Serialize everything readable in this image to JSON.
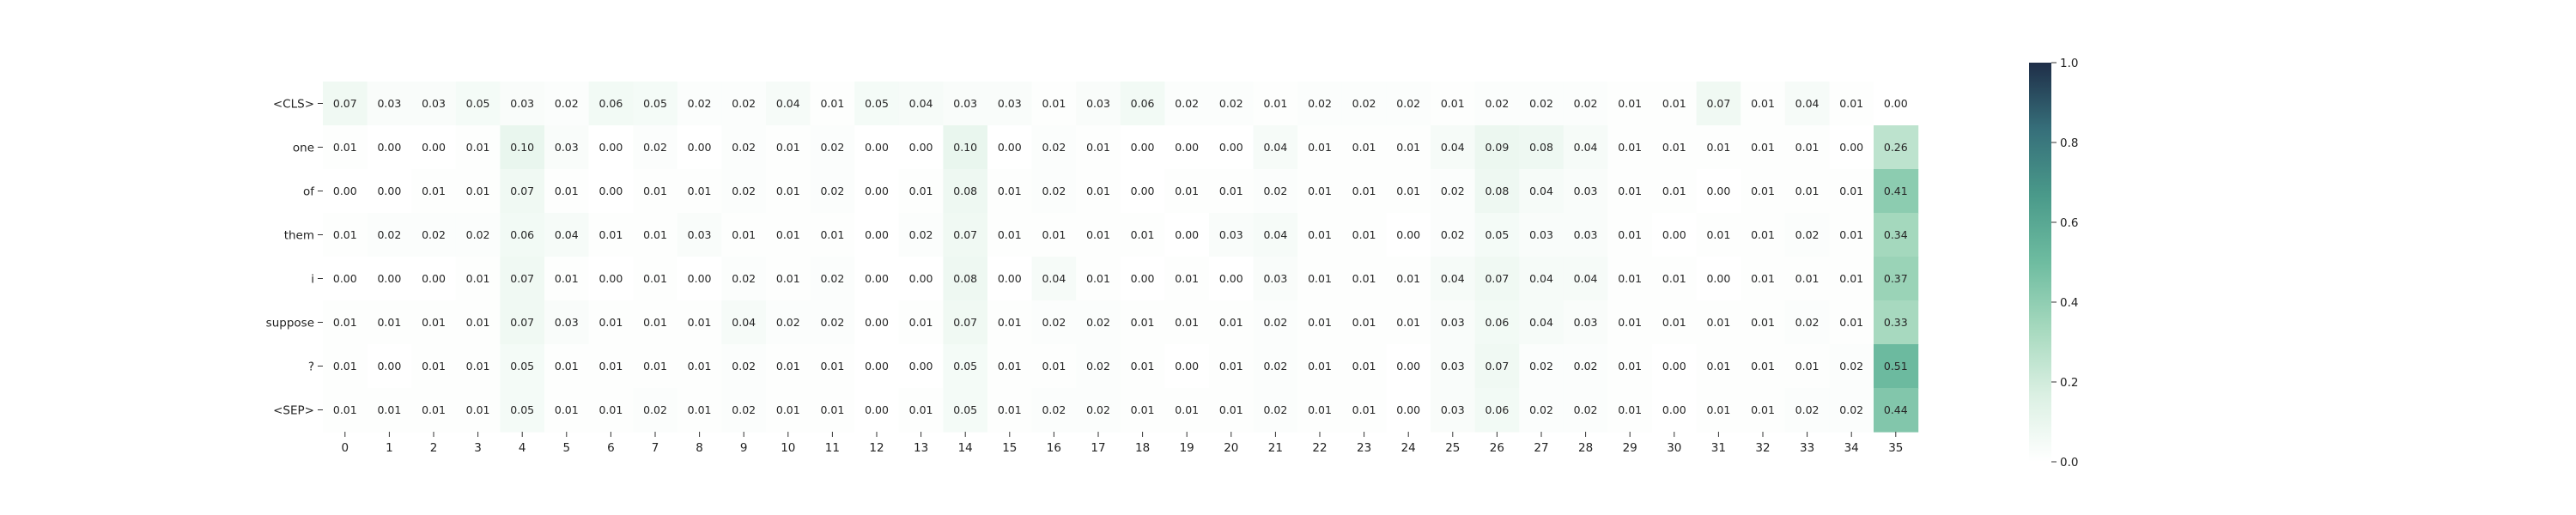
{
  "chart_data": {
    "type": "heatmap",
    "title": "",
    "xlabel": "",
    "ylabel": "",
    "x_categories": [
      "0",
      "1",
      "2",
      "3",
      "4",
      "5",
      "6",
      "7",
      "8",
      "9",
      "10",
      "11",
      "12",
      "13",
      "14",
      "15",
      "16",
      "17",
      "18",
      "19",
      "20",
      "21",
      "22",
      "23",
      "24",
      "25",
      "26",
      "27",
      "28",
      "29",
      "30",
      "31",
      "32",
      "33",
      "34",
      "35"
    ],
    "y_categories": [
      "<CLS>",
      "one",
      "of",
      "them",
      "i",
      "suppose",
      "?",
      "<SEP>"
    ],
    "values": [
      [
        0.07,
        0.03,
        0.03,
        0.05,
        0.03,
        0.02,
        0.06,
        0.05,
        0.02,
        0.02,
        0.04,
        0.01,
        0.05,
        0.04,
        0.03,
        0.03,
        0.01,
        0.03,
        0.06,
        0.02,
        0.02,
        0.01,
        0.02,
        0.02,
        0.02,
        0.01,
        0.02,
        0.02,
        0.02,
        0.01,
        0.01,
        0.07,
        0.01,
        0.04,
        0.01,
        0.0
      ],
      [
        0.01,
        0.0,
        0.0,
        0.01,
        0.1,
        0.03,
        0.0,
        0.02,
        0.0,
        0.02,
        0.01,
        0.02,
        0.0,
        0.0,
        0.1,
        0.0,
        0.02,
        0.01,
        0.0,
        0.0,
        0.0,
        0.04,
        0.01,
        0.01,
        0.01,
        0.04,
        0.09,
        0.08,
        0.04,
        0.01,
        0.01,
        0.01,
        0.01,
        0.01,
        0.0,
        0.26
      ],
      [
        0.0,
        0.0,
        0.01,
        0.01,
        0.07,
        0.01,
        0.0,
        0.01,
        0.01,
        0.02,
        0.01,
        0.02,
        0.0,
        0.01,
        0.08,
        0.01,
        0.02,
        0.01,
        0.0,
        0.01,
        0.01,
        0.02,
        0.01,
        0.01,
        0.01,
        0.02,
        0.08,
        0.04,
        0.03,
        0.01,
        0.01,
        0.0,
        0.01,
        0.01,
        0.01,
        0.41
      ],
      [
        0.01,
        0.02,
        0.02,
        0.02,
        0.06,
        0.04,
        0.01,
        0.01,
        0.03,
        0.01,
        0.01,
        0.01,
        0.0,
        0.02,
        0.07,
        0.01,
        0.01,
        0.01,
        0.01,
        0.0,
        0.03,
        0.04,
        0.01,
        0.01,
        0.0,
        0.02,
        0.05,
        0.03,
        0.03,
        0.01,
        0.0,
        0.01,
        0.01,
        0.02,
        0.01,
        0.34
      ],
      [
        0.0,
        0.0,
        0.0,
        0.01,
        0.07,
        0.01,
        0.0,
        0.01,
        0.0,
        0.02,
        0.01,
        0.02,
        0.0,
        0.0,
        0.08,
        0.0,
        0.04,
        0.01,
        0.0,
        0.01,
        0.0,
        0.03,
        0.01,
        0.01,
        0.01,
        0.04,
        0.07,
        0.04,
        0.04,
        0.01,
        0.01,
        0.0,
        0.01,
        0.01,
        0.01,
        0.37
      ],
      [
        0.01,
        0.01,
        0.01,
        0.01,
        0.07,
        0.03,
        0.01,
        0.01,
        0.01,
        0.04,
        0.02,
        0.02,
        0.0,
        0.01,
        0.07,
        0.01,
        0.02,
        0.02,
        0.01,
        0.01,
        0.01,
        0.02,
        0.01,
        0.01,
        0.01,
        0.03,
        0.06,
        0.04,
        0.03,
        0.01,
        0.01,
        0.01,
        0.01,
        0.02,
        0.01,
        0.33
      ],
      [
        0.01,
        0.0,
        0.01,
        0.01,
        0.05,
        0.01,
        0.01,
        0.01,
        0.01,
        0.02,
        0.01,
        0.01,
        0.0,
        0.0,
        0.05,
        0.01,
        0.01,
        0.02,
        0.01,
        0.0,
        0.01,
        0.02,
        0.01,
        0.01,
        0.0,
        0.03,
        0.07,
        0.02,
        0.02,
        0.01,
        0.0,
        0.01,
        0.01,
        0.01,
        0.02,
        0.51
      ],
      [
        0.01,
        0.01,
        0.01,
        0.01,
        0.05,
        0.01,
        0.01,
        0.02,
        0.01,
        0.02,
        0.01,
        0.01,
        0.0,
        0.01,
        0.05,
        0.01,
        0.02,
        0.02,
        0.01,
        0.01,
        0.01,
        0.02,
        0.01,
        0.01,
        0.0,
        0.03,
        0.06,
        0.02,
        0.02,
        0.01,
        0.0,
        0.01,
        0.01,
        0.02,
        0.02,
        0.44
      ]
    ],
    "value_range": [
      0.0,
      1.0
    ],
    "colorbar": {
      "ticks": [
        0.0,
        0.2,
        0.4,
        0.6,
        0.8,
        1.0
      ],
      "tick_labels": [
        "0.0",
        "0.2",
        "0.4",
        "0.6",
        "0.8",
        "1.0"
      ]
    },
    "colormap": [
      "#ffffff",
      "#dbf0e3",
      "#a6d9be",
      "#6ebca0",
      "#4a9a8a",
      "#366f7a",
      "#1f2e48"
    ],
    "annotated": true,
    "grid": false
  }
}
